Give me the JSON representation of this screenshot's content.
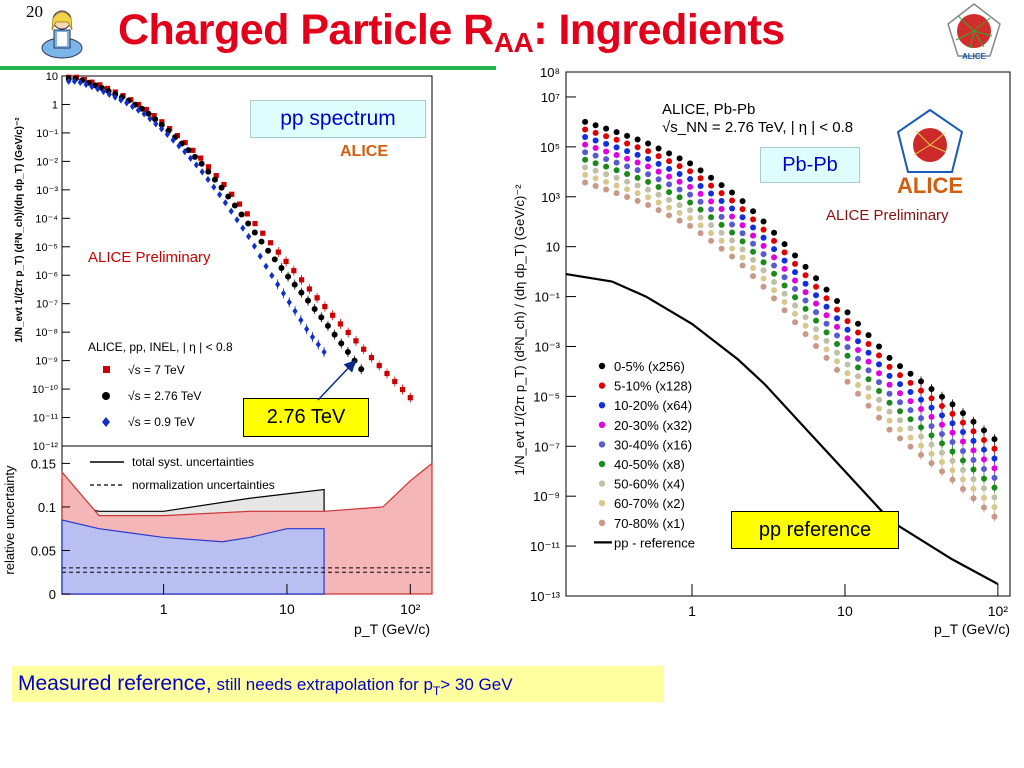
{
  "slide": {
    "number": "20",
    "title_main": "Charged Particle R",
    "title_sub": "AA",
    "title_rest": ": Ingredients",
    "footer_main": "Measured reference,",
    "footer_small_a": " still needs extrapolation for p",
    "footer_small_sub": "T",
    "footer_small_b": "> 30 GeV"
  },
  "colors": {
    "title": "#e3001b",
    "accent_green": "#22b14c",
    "callout_bg": "#ffff00",
    "footer_bg": "#ffffa0",
    "footer_text": "#0000cc"
  },
  "chart_data": [
    {
      "type": "scatter",
      "id": "left-spectrum",
      "title": "",
      "ylabel": "1/N_evt 1/(2π p_T) (d²N_ch)/(dη dp_T) (GeV/c)⁻²",
      "xlabel": "",
      "xscale": "log",
      "yscale": "log",
      "xlim": [
        0.15,
        150
      ],
      "ylim": [
        1e-12,
        10
      ],
      "yticks": [
        "10",
        "1",
        "10⁻¹",
        "10⁻²",
        "10⁻³",
        "10⁻⁴",
        "10⁻⁵",
        "10⁻⁶",
        "10⁻⁷",
        "10⁻⁸",
        "10⁻⁹",
        "10⁻¹⁰",
        "10⁻¹¹",
        "10⁻¹²"
      ],
      "annotations": [
        "ALICE Preliminary",
        "ALICE, pp, INEL, | η | < 0.8",
        "pp spectrum",
        "ALICE",
        "2.76 TeV"
      ],
      "legend_position": "bottom-left",
      "series": [
        {
          "name": "√s = 7 TeV",
          "color": "#cc0000",
          "marker": "square",
          "x": [
            0.2,
            0.3,
            0.5,
            0.7,
            1,
            1.5,
            2,
            3,
            5,
            7,
            10,
            15,
            20,
            30,
            50,
            70,
            100
          ],
          "y": [
            9,
            5,
            1.8,
            0.75,
            0.22,
            0.045,
            0.013,
            0.0018,
            0.00011,
            1.8e-05,
            2.8e-06,
            3.5e-07,
            8.5e-08,
            1.2e-08,
            1.1e-09,
            2.5e-10,
            5e-11
          ]
        },
        {
          "name": "√s = 2.76 TeV",
          "color": "#000000",
          "marker": "circle",
          "x": [
            0.2,
            0.3,
            0.5,
            0.7,
            1,
            1.5,
            2,
            3,
            5,
            7,
            10,
            15,
            20,
            30,
            40
          ],
          "y": [
            8,
            4.2,
            1.5,
            0.62,
            0.17,
            0.032,
            0.009,
            0.0011,
            5.5e-05,
            7.5e-06,
            1e-06,
            1.2e-07,
            2.5e-08,
            2.5e-09,
            5e-10
          ]
        },
        {
          "name": "√s = 0.9 TeV",
          "color": "#1030c8",
          "marker": "diamond",
          "x": [
            0.2,
            0.3,
            0.5,
            0.7,
            1,
            1.5,
            2,
            3,
            4,
            5,
            7,
            10,
            15,
            20
          ],
          "y": [
            6.5,
            3.4,
            1.15,
            0.46,
            0.12,
            0.021,
            0.005,
            0.0005,
            8e-05,
            2e-05,
            1.6e-06,
            1.5e-07,
            1e-08,
            2e-09
          ]
        }
      ]
    },
    {
      "type": "area",
      "id": "left-uncertainty",
      "xlabel": "p_T (GeV/c)",
      "ylabel": "relative uncertainty",
      "xscale": "log",
      "xlim": [
        0.15,
        150
      ],
      "ylim": [
        0,
        0.17
      ],
      "xticks": [
        "1",
        "10",
        "10²"
      ],
      "yticks": [
        "0",
        "0.05",
        "0.1",
        "0.15"
      ],
      "legend_position": "top",
      "series": [
        {
          "name": "total syst. uncertainties",
          "color": "#000000",
          "x": [
            0.15,
            0.2,
            0.3,
            1,
            5,
            10,
            20
          ],
          "y": [
            0.13,
            0.1,
            0.095,
            0.095,
            0.11,
            0.115,
            0.12
          ]
        },
        {
          "name": "normalization uncertainties",
          "color": "#000000",
          "x": [
            0.15,
            150
          ],
          "y": [
            0.03,
            0.03
          ]
        },
        {
          "name": "",
          "color": "#cc3333",
          "x": [
            0.15,
            0.3,
            1,
            5,
            20,
            60,
            100,
            150
          ],
          "y": [
            0.14,
            0.09,
            0.09,
            0.095,
            0.095,
            0.1,
            0.13,
            0.15
          ]
        },
        {
          "name": "",
          "color": "#2a3ad0",
          "x": [
            0.15,
            0.3,
            1,
            3,
            5,
            10,
            20
          ],
          "y": [
            0.085,
            0.075,
            0.065,
            0.06,
            0.065,
            0.075,
            0.075
          ]
        }
      ]
    },
    {
      "type": "scatter",
      "id": "right-pbpb",
      "title": "",
      "ylabel": "1/N_evt 1/(2π p_T) (d²N_ch) / (dη dp_T) (GeV/c)⁻²",
      "xlabel": "p_T (GeV/c)",
      "xscale": "log",
      "yscale": "log",
      "xlim": [
        0.15,
        120
      ],
      "ylim": [
        1e-13,
        100000000.0
      ],
      "xticks": [
        "1",
        "10",
        "10²"
      ],
      "yticks": [
        "10⁸",
        "10⁷",
        "10⁵",
        "10³",
        "10",
        "10⁻¹",
        "10⁻³",
        "10⁻⁵",
        "10⁻⁷",
        "10⁻⁹",
        "10⁻¹¹",
        "10⁻¹³"
      ],
      "annotations": [
        "ALICE, Pb-Pb",
        "√s_NN = 2.76 TeV, | η | < 0.8",
        "Pb-Pb",
        "ALICE",
        "ALICE Preliminary",
        "pp reference"
      ],
      "legend_position": "bottom-left",
      "series": [
        {
          "name": "0-5%  (x256)",
          "color": "#000000",
          "scale_log10": 0
        },
        {
          "name": "5-10% (x128)",
          "color": "#e00000",
          "scale_log10": -0.3
        },
        {
          "name": "10-20% (x64)",
          "color": "#1030e0",
          "scale_log10": -0.6
        },
        {
          "name": "20-30% (x32)",
          "color": "#e000e0",
          "scale_log10": -0.9
        },
        {
          "name": "30-40% (x16)",
          "color": "#5a5ad0",
          "scale_log10": -1.2
        },
        {
          "name": "40-50% (x8)",
          "color": "#1a8a1a",
          "scale_log10": -1.5
        },
        {
          "name": "50-60% (x4)",
          "color": "#c0c0a8",
          "scale_log10": -1.8
        },
        {
          "name": "60-70% (x2)",
          "color": "#d8c890",
          "scale_log10": -2.1
        },
        {
          "name": "70-80% (x1)",
          "color": "#c89888",
          "scale_log10": -2.4
        },
        {
          "name": "pp - reference",
          "color": "#000000",
          "line": true,
          "x": [
            0.15,
            0.3,
            0.5,
            1,
            2,
            3,
            5,
            10,
            20,
            50,
            100
          ],
          "y": [
            0.8,
            0.4,
            0.1,
            0.008,
            0.0003,
            3e-05,
            1e-06,
            1e-08,
            1e-10,
            3e-12,
            3e-13
          ]
        }
      ],
      "base_0_5": {
        "x": [
          0.2,
          0.3,
          0.5,
          1,
          2,
          3,
          5,
          10,
          20,
          50,
          100
        ],
        "y": [
          1000000,
          450000,
          150000,
          20000,
          1000,
          90.0,
          3,
          0.03,
          0.0003,
          5e-06,
          1.5e-07
        ]
      }
    }
  ],
  "callouts": {
    "pp_spectrum": "pp spectrum",
    "tev": "2.76 TeV",
    "pbpb": "Pb-Pb",
    "pp_reference": "pp reference"
  }
}
